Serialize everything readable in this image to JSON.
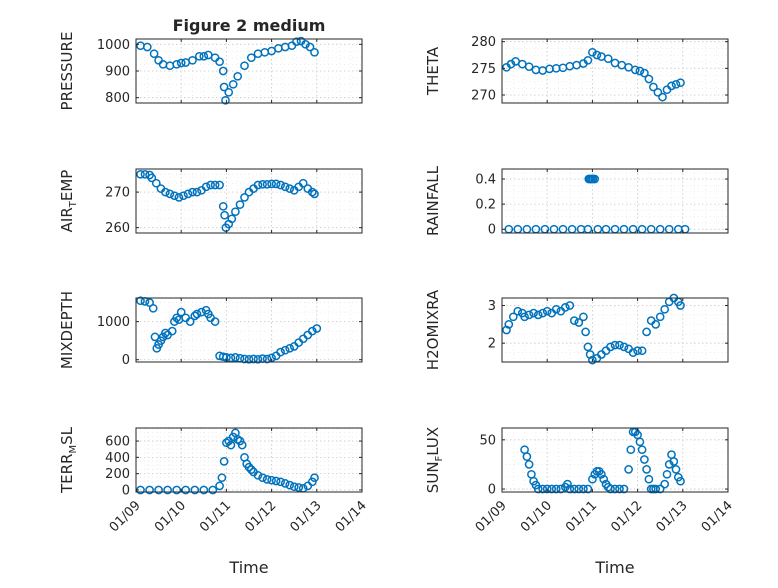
{
  "chart_data": [
    {
      "type": "scatter",
      "title": "Figure 2 medium",
      "ylabel": "PRESSURE",
      "ylim": [
        780,
        1020
      ],
      "yticks": [
        800,
        900,
        1000
      ],
      "xlim": [
        0,
        5
      ],
      "xticks": [
        0,
        1,
        2,
        3,
        4,
        5
      ],
      "xticklabels": [
        "",
        "",
        "",
        "",
        "",
        ""
      ],
      "grid": true,
      "series": [
        {
          "x": [
            0.1,
            0.25,
            0.4,
            0.5,
            0.6,
            0.75,
            0.9,
            1.0,
            1.1,
            1.25,
            1.4,
            1.5,
            1.6,
            1.75,
            1.85,
            1.93,
            1.95,
            1.98,
            2.05,
            2.15,
            2.25,
            2.4,
            2.55,
            2.7,
            2.85,
            3.0,
            3.15,
            3.3,
            3.45,
            3.55,
            3.65,
            3.75,
            3.85,
            3.95
          ],
          "y": [
            995,
            990,
            965,
            940,
            925,
            920,
            925,
            930,
            932,
            940,
            955,
            955,
            960,
            950,
            935,
            900,
            840,
            790,
            820,
            850,
            880,
            920,
            950,
            965,
            970,
            975,
            985,
            990,
            995,
            1010,
            1012,
            1000,
            990,
            970
          ]
        }
      ]
    },
    {
      "type": "scatter",
      "title": "",
      "ylabel": "THETA",
      "ylim": [
        268.5,
        280.5
      ],
      "yticks": [
        270,
        275,
        280
      ],
      "xlim": [
        0,
        5
      ],
      "xticks": [
        0,
        1,
        2,
        3,
        4,
        5
      ],
      "xticklabels": [
        "",
        "",
        "",
        "",
        "",
        ""
      ],
      "grid": true,
      "series": [
        {
          "x": [
            0.1,
            0.2,
            0.3,
            0.45,
            0.6,
            0.75,
            0.9,
            1.05,
            1.2,
            1.35,
            1.5,
            1.65,
            1.8,
            1.9,
            2.0,
            2.1,
            2.2,
            2.35,
            2.5,
            2.65,
            2.8,
            2.95,
            3.05,
            3.15,
            3.25,
            3.35,
            3.45,
            3.55,
            3.65,
            3.75,
            3.85,
            3.95
          ],
          "y": [
            275.2,
            275.8,
            276.3,
            275.8,
            275.3,
            274.7,
            274.6,
            274.9,
            275.0,
            275.1,
            275.4,
            275.6,
            275.9,
            276.5,
            278.0,
            277.5,
            277.2,
            276.8,
            276.0,
            275.6,
            275.2,
            274.7,
            274.5,
            274.1,
            273.0,
            271.5,
            270.5,
            269.6,
            271.0,
            271.7,
            272.0,
            272.3
          ]
        }
      ]
    },
    {
      "type": "scatter",
      "title": "",
      "ylabel": "AIR",
      "ylabel_sub": "T",
      "ylabel_tail": "EMP",
      "ylim": [
        258.5,
        276.5
      ],
      "yticks": [
        260,
        270
      ],
      "xlim": [
        0,
        5
      ],
      "xticks": [
        0,
        1,
        2,
        3,
        4,
        5
      ],
      "xticklabels": [
        "",
        "",
        "",
        "",
        "",
        ""
      ],
      "grid": true,
      "series": [
        {
          "x": [
            0.1,
            0.2,
            0.3,
            0.35,
            0.45,
            0.55,
            0.65,
            0.75,
            0.85,
            0.95,
            1.05,
            1.15,
            1.25,
            1.35,
            1.45,
            1.55,
            1.65,
            1.75,
            1.85,
            1.93,
            1.96,
            1.99,
            2.05,
            2.12,
            2.2,
            2.3,
            2.4,
            2.5,
            2.6,
            2.7,
            2.8,
            2.9,
            3.0,
            3.1,
            3.2,
            3.3,
            3.4,
            3.5,
            3.6,
            3.7,
            3.8,
            3.9,
            3.95
          ],
          "y": [
            275.0,
            275.0,
            274.8,
            274.0,
            272.5,
            271.0,
            270.0,
            269.5,
            269.0,
            268.5,
            269.0,
            269.5,
            270.0,
            270.0,
            270.5,
            271.5,
            272.0,
            272.0,
            272.0,
            266.0,
            263.5,
            260.0,
            261.0,
            262.5,
            264.5,
            266.5,
            268.5,
            270.0,
            271.0,
            272.0,
            272.2,
            272.2,
            272.3,
            272.3,
            272.0,
            271.5,
            271.0,
            270.5,
            271.5,
            272.5,
            271.0,
            270.0,
            269.5
          ]
        }
      ]
    },
    {
      "type": "scatter",
      "title": "",
      "ylabel": "RAINFALL",
      "ylim": [
        -0.03,
        0.48
      ],
      "yticks": [
        0,
        0.2,
        0.4
      ],
      "ytick_labels": [
        "0",
        "0.2",
        "0.4"
      ],
      "xlim": [
        0,
        5
      ],
      "xticks": [
        0,
        1,
        2,
        3,
        4,
        5
      ],
      "xticklabels": [
        "",
        "",
        "",
        "",
        "",
        ""
      ],
      "grid": true,
      "series": [
        {
          "x": [
            0.15,
            0.35,
            0.55,
            0.75,
            0.95,
            1.15,
            1.35,
            1.55,
            1.75,
            1.9,
            1.92,
            1.95,
            1.98,
            2.01,
            2.05,
            2.12,
            2.3,
            2.5,
            2.7,
            2.9,
            3.1,
            3.3,
            3.5,
            3.7,
            3.9,
            4.05
          ],
          "y": [
            0,
            0,
            0,
            0,
            0,
            0,
            0,
            0,
            0,
            0,
            0.4,
            0.4,
            0.4,
            0.4,
            0.4,
            0,
            0,
            0,
            0,
            0,
            0,
            0,
            0,
            0,
            0,
            0
          ]
        }
      ]
    },
    {
      "type": "scatter",
      "title": "",
      "ylabel": "MIXDEPTH",
      "ylim": [
        -60,
        1620
      ],
      "yticks": [
        0,
        1000
      ],
      "xlim": [
        0,
        5
      ],
      "xticks": [
        0,
        1,
        2,
        3,
        4,
        5
      ],
      "xticklabels": [
        "",
        "",
        "",
        "",
        "",
        ""
      ],
      "grid": true,
      "series": [
        {
          "x": [
            0.1,
            0.2,
            0.3,
            0.38,
            0.42,
            0.46,
            0.5,
            0.55,
            0.6,
            0.65,
            0.7,
            0.8,
            0.85,
            0.9,
            0.95,
            1.0,
            1.1,
            1.2,
            1.3,
            1.35,
            1.45,
            1.55,
            1.6,
            1.65,
            1.75,
            1.85,
            1.93,
            2.0,
            2.1,
            2.2,
            2.3,
            2.4,
            2.5,
            2.6,
            2.7,
            2.8,
            2.9,
            3.0,
            3.1,
            3.2,
            3.3,
            3.4,
            3.5,
            3.6,
            3.7,
            3.8,
            3.9,
            4.0
          ],
          "y": [
            1550,
            1530,
            1500,
            1350,
            600,
            300,
            400,
            500,
            600,
            700,
            650,
            750,
            1000,
            1100,
            1050,
            1250,
            1100,
            1000,
            1150,
            1200,
            1250,
            1300,
            1200,
            1100,
            1000,
            100,
            80,
            60,
            50,
            60,
            40,
            20,
            10,
            20,
            10,
            30,
            20,
            50,
            100,
            200,
            250,
            300,
            350,
            450,
            550,
            650,
            750,
            820
          ]
        }
      ]
    },
    {
      "type": "scatter",
      "title": "",
      "ylabel": "H2OMIXRA",
      "ylim": [
        1.5,
        3.2
      ],
      "yticks": [
        2,
        3
      ],
      "xlim": [
        0,
        5
      ],
      "xticks": [
        0,
        1,
        2,
        3,
        4,
        5
      ],
      "xticklabels": [
        "",
        "",
        "",
        "",
        "",
        ""
      ],
      "grid": true,
      "series": [
        {
          "x": [
            0.1,
            0.15,
            0.25,
            0.35,
            0.45,
            0.5,
            0.6,
            0.7,
            0.8,
            0.9,
            1.0,
            1.1,
            1.2,
            1.3,
            1.4,
            1.5,
            1.6,
            1.7,
            1.8,
            1.85,
            1.9,
            1.95,
            2.0,
            2.1,
            2.2,
            2.3,
            2.4,
            2.5,
            2.6,
            2.7,
            2.8,
            2.9,
            3.0,
            3.1,
            3.2,
            3.3,
            3.4,
            3.5,
            3.6,
            3.7,
            3.8,
            3.9,
            3.95
          ],
          "y": [
            2.35,
            2.5,
            2.7,
            2.85,
            2.8,
            2.7,
            2.75,
            2.8,
            2.75,
            2.8,
            2.85,
            2.8,
            2.9,
            2.85,
            2.95,
            3.0,
            2.6,
            2.55,
            2.7,
            2.3,
            1.9,
            1.7,
            1.55,
            1.6,
            1.7,
            1.8,
            1.9,
            1.95,
            1.95,
            1.9,
            1.85,
            1.75,
            1.8,
            1.8,
            2.3,
            2.6,
            2.5,
            2.7,
            2.9,
            3.1,
            3.2,
            3.1,
            3.0
          ]
        }
      ]
    },
    {
      "type": "scatter",
      "title": "",
      "ylabel": "TERR",
      "ylabel_sub": "M",
      "ylabel_tail": "SL",
      "ylim": [
        -25,
        760
      ],
      "yticks": [
        0,
        200,
        400,
        600
      ],
      "xlim": [
        0,
        5
      ],
      "xticks": [
        0,
        1,
        2,
        3,
        4,
        5
      ],
      "xticklabels": [
        "01/09",
        "01/10",
        "01/11",
        "01/12",
        "01/13",
        "01/14"
      ],
      "xlabel": "Time",
      "grid": true,
      "series": [
        {
          "x": [
            0.1,
            0.3,
            0.5,
            0.7,
            0.9,
            1.1,
            1.3,
            1.5,
            1.7,
            1.85,
            1.9,
            1.95,
            2.0,
            2.05,
            2.1,
            2.15,
            2.2,
            2.25,
            2.3,
            2.35,
            2.4,
            2.45,
            2.5,
            2.55,
            2.6,
            2.7,
            2.8,
            2.9,
            3.0,
            3.1,
            3.2,
            3.3,
            3.4,
            3.5,
            3.6,
            3.7,
            3.8,
            3.9,
            3.95
          ],
          "y": [
            0,
            0,
            0,
            0,
            0,
            0,
            0,
            0,
            0,
            50,
            150,
            350,
            580,
            600,
            550,
            650,
            700,
            620,
            600,
            550,
            400,
            320,
            280,
            250,
            220,
            180,
            150,
            130,
            120,
            110,
            100,
            80,
            60,
            40,
            30,
            20,
            50,
            100,
            150
          ]
        }
      ]
    },
    {
      "type": "scatter",
      "title": "",
      "ylabel": "SUN",
      "ylabel_sub": "F",
      "ylabel_tail": "LUX",
      "ylim": [
        -3,
        62
      ],
      "yticks": [
        0,
        50
      ],
      "xlim": [
        0,
        5
      ],
      "xticks": [
        0,
        1,
        2,
        3,
        4,
        5
      ],
      "xticklabels": [
        "01/09",
        "01/10",
        "01/11",
        "01/12",
        "01/13",
        "01/14"
      ],
      "xlabel": "Time",
      "grid": true,
      "series": [
        {
          "x": [
            0.5,
            0.55,
            0.6,
            0.65,
            0.7,
            0.75,
            0.8,
            0.9,
            1.0,
            1.1,
            1.2,
            1.3,
            1.4,
            1.45,
            1.5,
            1.6,
            1.7,
            1.8,
            1.9,
            2.0,
            2.05,
            2.1,
            2.15,
            2.2,
            2.25,
            2.3,
            2.35,
            2.4,
            2.5,
            2.6,
            2.7,
            2.8,
            2.85,
            2.9,
            2.95,
            3.0,
            3.05,
            3.1,
            3.15,
            3.2,
            3.25,
            3.3,
            3.35,
            3.4,
            3.5,
            3.6,
            3.65,
            3.7,
            3.75,
            3.8,
            3.85,
            3.9,
            3.95
          ],
          "y": [
            40,
            33,
            25,
            15,
            8,
            4,
            0,
            0,
            0,
            0,
            0,
            0,
            2,
            5,
            0,
            0,
            0,
            0,
            0,
            10,
            15,
            18,
            18,
            15,
            10,
            5,
            2,
            0,
            0,
            0,
            0,
            20,
            40,
            58,
            58,
            55,
            48,
            40,
            30,
            20,
            10,
            0,
            0,
            0,
            0,
            5,
            15,
            25,
            35,
            28,
            20,
            12,
            8
          ]
        }
      ]
    }
  ]
}
